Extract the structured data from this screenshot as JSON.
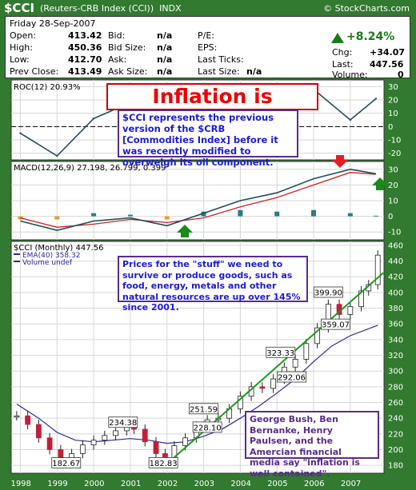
{
  "header": {
    "symbol": "$CCI",
    "description": "(Reuters-CRB Index (CCI))",
    "exchange": "INDX",
    "brand": "© StockCharts.com"
  },
  "quote": {
    "date": "Friday  28-Sep-2007",
    "open_label": "Open:",
    "open": "413.42",
    "high_label": "High:",
    "high": "450.36",
    "low_label": "Low:",
    "low": "412.70",
    "prevclose_label": "Prev Close:",
    "prevclose": "413.49",
    "bid_label": "Bid:",
    "bid": "n/a",
    "bidsize_label": "Bid Size:",
    "bidsize": "n/a",
    "ask_label": "Ask:",
    "ask": "n/a",
    "asksize_label": "Ask Size:",
    "asksize": "n/a",
    "pe_label": "P/E:",
    "eps_label": "EPS:",
    "lastticks_label": "Last Ticks:",
    "lastsize_label": "Last Size:",
    "lastsize": "n/a",
    "pct_change": "+8.24%",
    "chg_label": "Chg:",
    "chg": "+34.07",
    "last_label": "Last:",
    "last": "447.56",
    "volume_label": "Volume:",
    "volume": "0",
    "up_color": "#1a7a1a"
  },
  "annotations": {
    "headline": "Inflation is Raging!",
    "cci_note": "$CCI represents the previous version of the $CRB [Commodities Index] before it was recently modified to overweigh its oil component.",
    "stuff_note": "Prices for the \"stuff\" we need to survive or produce goods, such as food, energy, metals and other natural resources are up over 145% since 2001.",
    "bush_note": "George Bush, Ben Bernanke, Henry Paulsen, and the Amercian financial media say \"inflation is well contained\"."
  },
  "chart_data": [
    {
      "type": "line",
      "panel": "roc",
      "label": "ROC(12) 20.93%",
      "ylim": [
        -25,
        35
      ],
      "yticks": [
        -20,
        -10,
        0,
        10,
        20,
        30
      ],
      "x": [
        "1998",
        "1999",
        "2000",
        "2001",
        "2002",
        "2003",
        "2004",
        "2005",
        "2006",
        "2007",
        "2007.7"
      ],
      "values": [
        -5,
        -22,
        6,
        18,
        -12,
        8,
        25,
        14,
        28,
        5,
        20.93
      ]
    },
    {
      "type": "line",
      "panel": "macd",
      "label": "MACD(12,26,9) 27.198, 26.799, 0.399",
      "ylim": [
        -15,
        35
      ],
      "yticks": [
        -10,
        0,
        10,
        20,
        30
      ],
      "macd": 27.198,
      "signal": 26.799,
      "histogram": 0.399,
      "x": [
        "1998",
        "1999",
        "2000",
        "2001",
        "2002",
        "2003",
        "2004",
        "2005",
        "2006",
        "2007",
        "2007.7"
      ],
      "macd_values": [
        -3,
        -9,
        -3,
        -1,
        -6,
        2,
        10,
        15,
        24,
        30,
        27.198
      ],
      "signal_values": [
        -1,
        -7,
        -5,
        -2,
        -4,
        -1,
        6,
        12,
        20,
        28,
        26.799
      ]
    },
    {
      "type": "candlestick",
      "panel": "price",
      "label": "$CCI (Monthly) 447.56",
      "legend": [
        "EMA(40) 358.32",
        "Volume undef"
      ],
      "ylim": [
        170,
        465
      ],
      "yticks": [
        180,
        200,
        220,
        240,
        260,
        280,
        300,
        320,
        340,
        360,
        380,
        400,
        420,
        440,
        460
      ],
      "xlabels": [
        "1998",
        "1999",
        "2000",
        "2001",
        "2002",
        "2003",
        "2004",
        "2005",
        "2006",
        "2007"
      ],
      "ema": 358.32,
      "price_labels": [
        {
          "text": "182.67",
          "x": 1999.25,
          "y": 182.67
        },
        {
          "text": "234.38",
          "x": 2000.8,
          "y": 234.38
        },
        {
          "text": "182.83",
          "x": 2001.9,
          "y": 182.83
        },
        {
          "text": "251.59",
          "x": 2003.0,
          "y": 251.59
        },
        {
          "text": "228.10",
          "x": 2003.1,
          "y": 228.1
        },
        {
          "text": "323.33",
          "x": 2005.1,
          "y": 323.33
        },
        {
          "text": "292.06",
          "x": 2005.4,
          "y": 292.06
        },
        {
          "text": "399.90",
          "x": 2006.4,
          "y": 399.9
        },
        {
          "text": "359.07",
          "x": 2006.6,
          "y": 359.07
        }
      ],
      "closes": [
        {
          "x": 1997.9,
          "y": 243
        },
        {
          "x": 1998.2,
          "y": 232
        },
        {
          "x": 1998.5,
          "y": 215
        },
        {
          "x": 1998.8,
          "y": 200
        },
        {
          "x": 1999.1,
          "y": 186
        },
        {
          "x": 1999.4,
          "y": 195
        },
        {
          "x": 1999.7,
          "y": 206
        },
        {
          "x": 2000.0,
          "y": 212
        },
        {
          "x": 2000.3,
          "y": 218
        },
        {
          "x": 2000.6,
          "y": 224
        },
        {
          "x": 2000.9,
          "y": 230
        },
        {
          "x": 2001.1,
          "y": 226
        },
        {
          "x": 2001.4,
          "y": 210
        },
        {
          "x": 2001.7,
          "y": 195
        },
        {
          "x": 2001.95,
          "y": 187
        },
        {
          "x": 2002.2,
          "y": 205
        },
        {
          "x": 2002.5,
          "y": 215
        },
        {
          "x": 2002.8,
          "y": 230
        },
        {
          "x": 2003.1,
          "y": 238
        },
        {
          "x": 2003.4,
          "y": 240
        },
        {
          "x": 2003.7,
          "y": 252
        },
        {
          "x": 2004.0,
          "y": 268
        },
        {
          "x": 2004.3,
          "y": 280
        },
        {
          "x": 2004.6,
          "y": 278
        },
        {
          "x": 2004.9,
          "y": 290
        },
        {
          "x": 2005.2,
          "y": 305
        },
        {
          "x": 2005.5,
          "y": 315
        },
        {
          "x": 2005.8,
          "y": 335
        },
        {
          "x": 2006.1,
          "y": 355
        },
        {
          "x": 2006.4,
          "y": 385
        },
        {
          "x": 2006.7,
          "y": 372
        },
        {
          "x": 2007.0,
          "y": 382
        },
        {
          "x": 2007.3,
          "y": 402
        },
        {
          "x": 2007.5,
          "y": 410
        },
        {
          "x": 2007.75,
          "y": 447.56
        }
      ],
      "ema_values": [
        {
          "x": 1997.9,
          "y": 258
        },
        {
          "x": 1998.5,
          "y": 240
        },
        {
          "x": 1999.0,
          "y": 222
        },
        {
          "x": 1999.5,
          "y": 212
        },
        {
          "x": 2000.0,
          "y": 210
        },
        {
          "x": 2000.5,
          "y": 212
        },
        {
          "x": 2001.0,
          "y": 214
        },
        {
          "x": 2001.5,
          "y": 212
        },
        {
          "x": 2002.0,
          "y": 208
        },
        {
          "x": 2002.5,
          "y": 210
        },
        {
          "x": 2003.0,
          "y": 217
        },
        {
          "x": 2003.5,
          "y": 226
        },
        {
          "x": 2004.0,
          "y": 240
        },
        {
          "x": 2004.5,
          "y": 255
        },
        {
          "x": 2005.0,
          "y": 272
        },
        {
          "x": 2005.5,
          "y": 290
        },
        {
          "x": 2006.0,
          "y": 312
        },
        {
          "x": 2006.5,
          "y": 332
        },
        {
          "x": 2007.0,
          "y": 345
        },
        {
          "x": 2007.75,
          "y": 358.32
        }
      ],
      "trendline": [
        {
          "x": 2001.95,
          "y": 180
        },
        {
          "x": 2007.9,
          "y": 425
        }
      ]
    }
  ]
}
